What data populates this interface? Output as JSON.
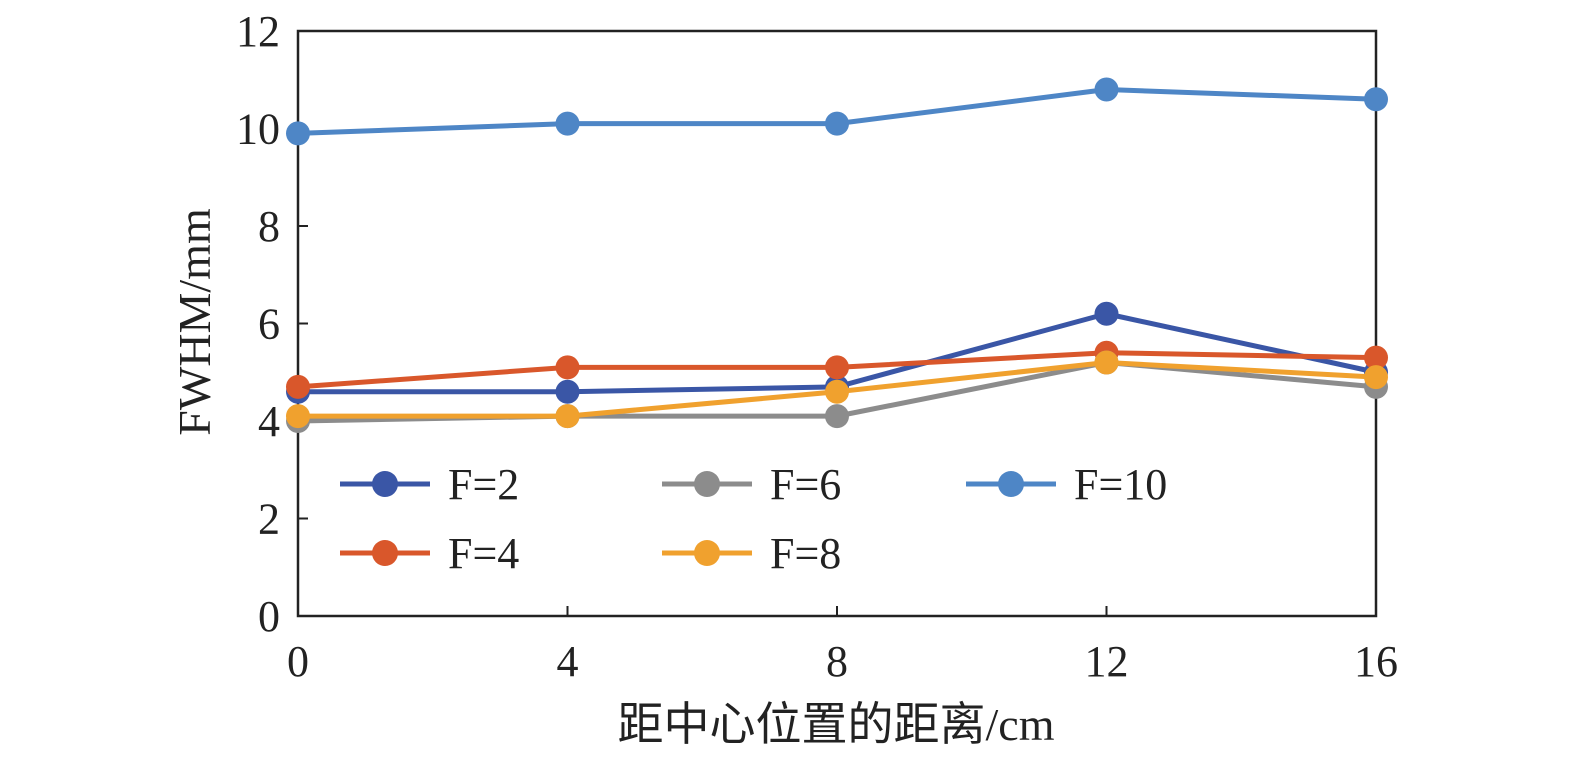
{
  "chart_data": {
    "type": "line",
    "title": "",
    "xlabel": "距中心位置的距离/cm",
    "ylabel": "FWHM/mm",
    "x": [
      0,
      4,
      8,
      12,
      16
    ],
    "xticks": [
      0,
      4,
      8,
      12,
      16
    ],
    "yticks": [
      0,
      2,
      4,
      6,
      8,
      10,
      12
    ],
    "xlim": [
      0,
      16
    ],
    "ylim": [
      0,
      12
    ],
    "grid": false,
    "legend_position": "lower-left",
    "series": [
      {
        "name": "F=2",
        "color": "#3a56a6",
        "values": [
          4.6,
          4.6,
          4.7,
          6.2,
          5.0
        ]
      },
      {
        "name": "F=4",
        "color": "#d9572b",
        "values": [
          4.7,
          5.1,
          5.1,
          5.4,
          5.3
        ]
      },
      {
        "name": "F=6",
        "color": "#8c8c8c",
        "values": [
          4.0,
          4.1,
          4.1,
          5.2,
          4.7
        ]
      },
      {
        "name": "F=8",
        "color": "#f0a12e",
        "values": [
          4.1,
          4.1,
          4.6,
          5.2,
          4.9
        ]
      },
      {
        "name": "F=10",
        "color": "#4e86c6",
        "values": [
          9.9,
          10.1,
          10.1,
          10.8,
          10.6
        ]
      }
    ]
  }
}
